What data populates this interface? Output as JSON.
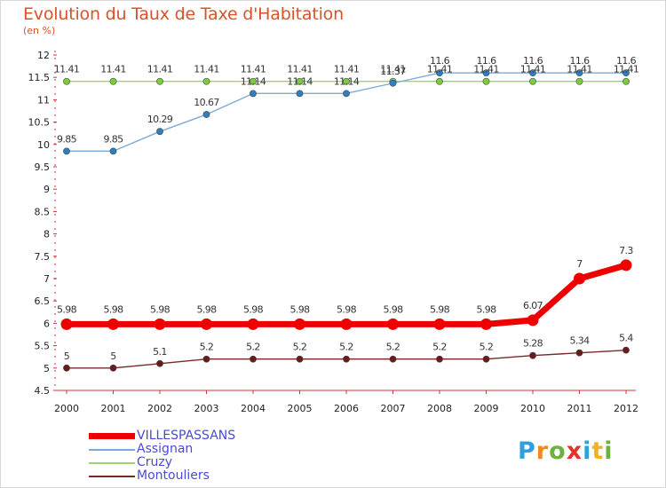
{
  "title": "Evolution du Taux de Taxe d'Habitation",
  "subtitle": "(en %)",
  "logo_text": "Proxiti",
  "chart_data": {
    "type": "line",
    "title": "Evolution du Taux de Taxe d'Habitation",
    "ylabel": "(en %)",
    "xlabel": "",
    "ylim": [
      4.5,
      12
    ],
    "yticks": [
      "4.5",
      "5",
      "5.5",
      "6",
      "6.5",
      "7",
      "7.5",
      "8",
      "8.5",
      "9",
      "9.5",
      "10",
      "10.5",
      "11",
      "11.5",
      "12"
    ],
    "categories": [
      "2000",
      "2001",
      "2002",
      "2003",
      "2004",
      "2005",
      "2006",
      "2007",
      "2008",
      "2009",
      "2010",
      "2011",
      "2012"
    ],
    "grid": false,
    "legend_position": "bottom-left",
    "series": [
      {
        "name": "VILLESPASSANS",
        "color": "#ee0000",
        "values": [
          5.98,
          5.98,
          5.98,
          5.98,
          5.98,
          5.98,
          5.98,
          5.98,
          5.98,
          5.98,
          6.07,
          7,
          7.3
        ],
        "labels": [
          "5.98",
          "5.98",
          "5.98",
          "5.98",
          "5.98",
          "5.98",
          "5.98",
          "5.98",
          "5.98",
          "5.98",
          "6.07",
          "7",
          "7.3"
        ]
      },
      {
        "name": "Assignan",
        "color": "#7fa9d4",
        "values": [
          9.85,
          9.85,
          10.29,
          10.67,
          11.14,
          11.14,
          11.14,
          11.37,
          11.6,
          11.6,
          11.6,
          11.6,
          11.6
        ],
        "labels": [
          "9.85",
          "9.85",
          "10.29",
          "10.67",
          "11.14",
          "11.14",
          "11.14",
          "11.37",
          "11.6",
          "11.6",
          "11.6",
          "11.6",
          "11.6"
        ]
      },
      {
        "name": "Cruzy",
        "color": "#96d96a",
        "values": [
          11.41,
          11.41,
          11.41,
          11.41,
          11.41,
          11.41,
          11.41,
          11.41,
          11.41,
          11.41,
          11.41,
          11.41,
          11.41
        ],
        "labels": [
          "11.41",
          "11.41",
          "11.41",
          "11.41",
          "11.41",
          "11.41",
          "11.41",
          "11.41",
          "11.41",
          "11.41",
          "11.41",
          "11.41",
          "11.41"
        ]
      },
      {
        "name": "Montouliers",
        "color": "#7a2828",
        "values": [
          5,
          5,
          5.1,
          5.2,
          5.2,
          5.2,
          5.2,
          5.2,
          5.2,
          5.2,
          5.28,
          5.34,
          5.4
        ],
        "labels": [
          "5",
          "5",
          "5.1",
          "5.2",
          "5.2",
          "5.2",
          "5.2",
          "5.2",
          "5.2",
          "5.2",
          "5.28",
          "5.34",
          "5.4"
        ]
      }
    ]
  }
}
